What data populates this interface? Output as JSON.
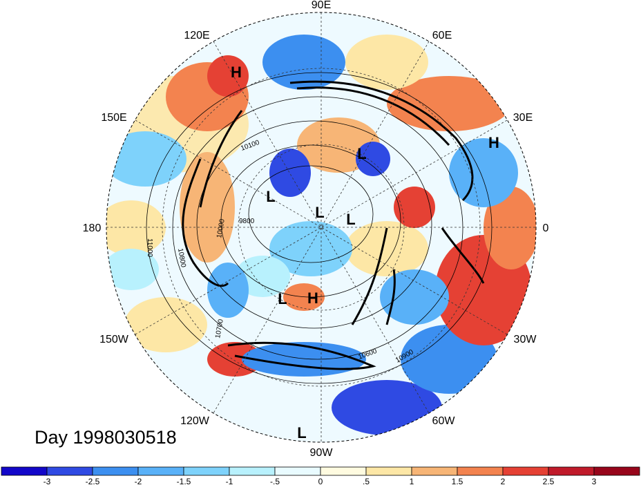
{
  "map": {
    "projection": "north-polar-stereographic",
    "longitude_labels": [
      {
        "name": "lon-90e",
        "text": "90E"
      },
      {
        "name": "lon-60e",
        "text": "60E"
      },
      {
        "name": "lon-30e",
        "text": "30E"
      },
      {
        "name": "lon-0",
        "text": "0"
      },
      {
        "name": "lon-30w",
        "text": "30W"
      },
      {
        "name": "lon-60w",
        "text": "60W"
      },
      {
        "name": "lon-90w",
        "text": "90W"
      },
      {
        "name": "lon-120w",
        "text": "120W"
      },
      {
        "name": "lon-150w",
        "text": "150W"
      },
      {
        "name": "lon-180",
        "text": "180"
      },
      {
        "name": "lon-150e",
        "text": "150E"
      },
      {
        "name": "lon-120e",
        "text": "120E"
      }
    ],
    "pressure_centers": [
      {
        "name": "high-center-siberia",
        "text": "H"
      },
      {
        "name": "high-center-europe",
        "text": "H"
      },
      {
        "name": "low-center-kara",
        "text": "L"
      },
      {
        "name": "low-center-east-siberia",
        "text": "L"
      },
      {
        "name": "low-center-pole",
        "text": "L"
      },
      {
        "name": "low-center-greenland",
        "text": "L"
      },
      {
        "name": "low-center-alaska",
        "text": "L"
      },
      {
        "name": "high-center-canada",
        "text": "H"
      },
      {
        "name": "low-center-south",
        "text": "L"
      }
    ],
    "contour_labels": [
      {
        "name": "contour-label-9800",
        "text": "9800"
      },
      {
        "name": "contour-label-10000",
        "text": "10000"
      },
      {
        "name": "contour-label-11000",
        "text": "11000"
      },
      {
        "name": "contour-label-10800",
        "text": "10800"
      },
      {
        "name": "contour-label-10700",
        "text": "10700"
      },
      {
        "name": "contour-label-10600",
        "text": "10600"
      },
      {
        "name": "contour-label-10900",
        "text": "10900"
      },
      {
        "name": "contour-label-10100",
        "text": "10100"
      }
    ],
    "colors": {
      "strong_negative": "#1a2fd6",
      "negative": "#3f8ff0",
      "weak_negative": "#9fe3ff",
      "neutral": "#ffffff",
      "weak_positive": "#fde7a6",
      "positive": "#f3834f",
      "strong_positive": "#b5091d"
    }
  },
  "day_label": "Day 1998030518",
  "colorbar": {
    "ticks": [
      "-3",
      "-2.5",
      "-2",
      "-1.5",
      "-1",
      "-.5",
      "0",
      ".5",
      "1",
      "1.5",
      "2",
      "2.5",
      "3"
    ],
    "colors": [
      "#1307c9",
      "#2f4ae3",
      "#3c8ff0",
      "#59b1f8",
      "#7ed2fb",
      "#b8f1fd",
      "#e9fbff",
      "#fffbe0",
      "#fde7a6",
      "#f7b576",
      "#f3834f",
      "#e54134",
      "#c01a2a",
      "#97051b"
    ]
  }
}
